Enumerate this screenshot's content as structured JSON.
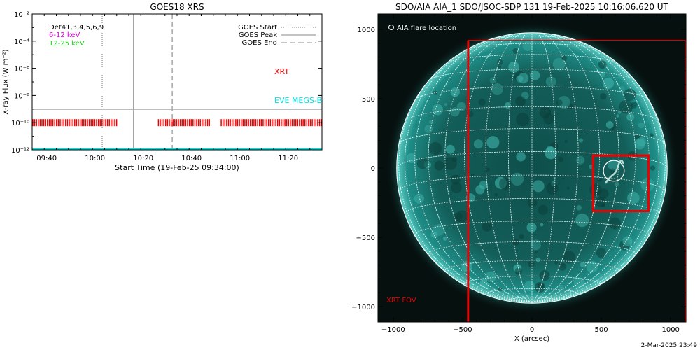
{
  "left_panel": {
    "title": "GOES18 XRS",
    "ylabel": "X-ray Flux (W m⁻²)",
    "xlabel": "Start Time (19-Feb-25 09:34:00)",
    "det_label": "Det41,3,4,5,6,9",
    "band_low": "6-12 keV",
    "band_high": "12-25 keV",
    "legend": [
      "GOES Start",
      "GOES Peak",
      "GOES End"
    ],
    "xrt_label": "XRT",
    "eve_label": "EVE MEGS-B",
    "colors": {
      "band_low": "#dd00dd",
      "band_high": "#22cc22",
      "xrt": "#ee0000",
      "eve": "#00e0e0"
    }
  },
  "right_panel": {
    "title": "SDO/AIA AIA_1 SDO/JSOC-SDP 131 19-Feb-2025 10:16:06.620 UT",
    "legend": "AIA flare location",
    "xlabel": "X (arcsec)",
    "fov_label": "XRT FOV",
    "colors": {
      "disk": "#1e8c86",
      "fov": "#ee0000"
    }
  },
  "footer": {
    "timestamp": "2-Mar-2025 23:49"
  },
  "chart_data": [
    {
      "type": "line",
      "title": "GOES18 XRS",
      "xlabel": "Start Time (19-Feb-25 09:34:00)",
      "ylabel": "X-ray Flux (W m⁻²)",
      "y_scale": "log",
      "xlim": [
        "09:34",
        "11:34"
      ],
      "ylim": [
        1e-12,
        0.01
      ],
      "x_ticks": [
        "09:40",
        "10:00",
        "10:20",
        "10:40",
        "11:00",
        "11:20"
      ],
      "y_ticks": [
        1e-12,
        1e-10,
        1e-08,
        1e-06,
        0.0001,
        0.01
      ],
      "y_tick_labels": [
        "10⁻¹²",
        "10⁻¹⁰",
        "10⁻⁸",
        "10⁻⁶",
        "10⁻⁴",
        "10⁻²"
      ],
      "events": [
        {
          "name": "GOES Start",
          "time": "10:03",
          "style": "dotted"
        },
        {
          "name": "GOES Peak",
          "time": "10:16",
          "style": "solid"
        },
        {
          "name": "GOES End",
          "time": "10:32",
          "style": "dashed"
        }
      ],
      "series": [
        {
          "name": "XRT",
          "flux": 1e-10,
          "intervals": [
            [
              "09:34",
              "10:09"
            ],
            [
              "10:26",
              "10:48"
            ],
            [
              "10:52",
              "11:34"
            ]
          ]
        },
        {
          "name": "EVE MEGS-B",
          "flux": 1e-12,
          "intervals": [
            [
              "09:34",
              "11:34"
            ]
          ]
        }
      ],
      "reference_level": 1e-09,
      "grid": false
    },
    {
      "type": "image",
      "title": "SDO/AIA AIA_1 SDO/JSOC-SDP 131 19-Feb-2025 10:16:06.620 UT",
      "xlabel": "X (arcsec)",
      "xlim": [
        -1110,
        1110
      ],
      "ylim": [
        -1110,
        1110
      ],
      "x_ticks": [
        -1000,
        -500,
        0,
        500,
        1000
      ],
      "y_ticks": [
        -1000,
        -500,
        0,
        500,
        1000
      ],
      "solar_radius": 975,
      "flare_location": [
        590,
        -20
      ],
      "flare_circle_radius": 75,
      "flare_box": [
        [
          440,
          -310
        ],
        [
          840,
          90
        ]
      ],
      "xrt_fov_left_edge": -460,
      "xrt_fov_top": 920
    }
  ]
}
